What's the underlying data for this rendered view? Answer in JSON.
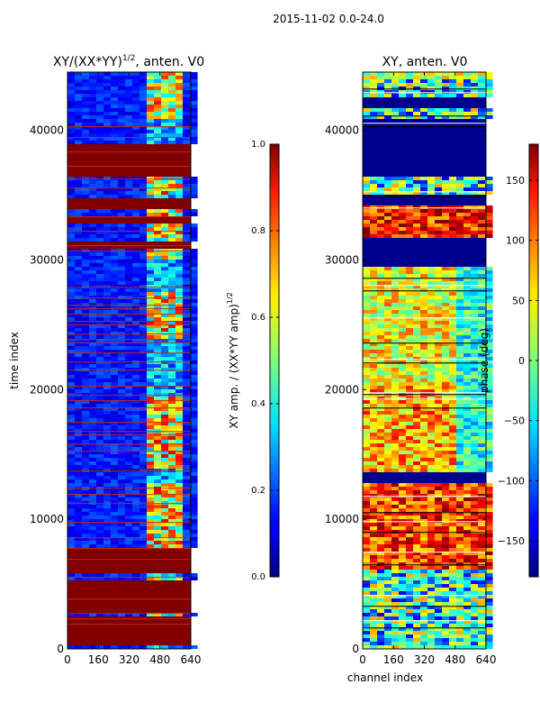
{
  "figure": {
    "suptitle": "2015-11-02 0.0-24.0"
  },
  "chart_data": [
    {
      "type": "heatmap",
      "title_main": "XY/(XX*YY)",
      "title_sup": "1/2",
      "title_tail": ", anten. V0",
      "xlabel": "",
      "ylabel": "time index",
      "xlim": [
        0,
        640
      ],
      "ylim": [
        0,
        44500
      ],
      "xticks": [
        0,
        160,
        320,
        480,
        640
      ],
      "yticks": [
        0,
        10000,
        20000,
        30000,
        40000
      ],
      "colorbar": {
        "label_main": "XY amp. / (XX*YY amp)",
        "label_sup": "1/2",
        "range": [
          0.0,
          1.0
        ],
        "ticks": [
          "0.0",
          "0.2",
          "0.4",
          "0.6",
          "0.8",
          "1.0"
        ]
      }
    },
    {
      "type": "heatmap",
      "title": "XY, anten. V0",
      "xlabel": "channel index",
      "ylabel": "",
      "xlim": [
        0,
        640
      ],
      "ylim": [
        0,
        44500
      ],
      "xticks": [
        0,
        160,
        320,
        480,
        640
      ],
      "yticks": [
        0,
        10000,
        20000,
        30000,
        40000
      ],
      "colorbar": {
        "label": "phase (deg)",
        "range": [
          -180,
          180
        ],
        "ticks": [
          "−150",
          "−100",
          "−50",
          "0",
          "50",
          "100",
          "150"
        ]
      }
    }
  ]
}
